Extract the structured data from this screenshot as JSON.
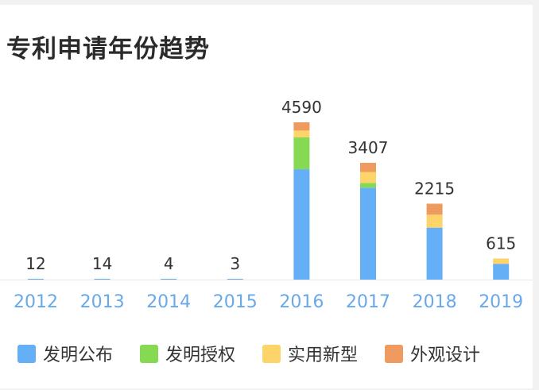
{
  "title": "专利申请年份趋势",
  "colors": {
    "发明公布": "#64aff5",
    "发明授权": "#86d953",
    "实用新型": "#fdd46a",
    "外观设计": "#ef9a5e",
    "axis_label": "#6aa8e8",
    "total_label": "#333333",
    "baseline": "#e8e8e8"
  },
  "legend": [
    {
      "name": "发明公布",
      "icon": "square-swatch"
    },
    {
      "name": "发明授权",
      "icon": "square-swatch"
    },
    {
      "name": "实用新型",
      "icon": "square-swatch"
    },
    {
      "name": "外观设计",
      "icon": "square-swatch"
    }
  ],
  "chart_data": {
    "type": "bar",
    "stacked": true,
    "categories": [
      "2012",
      "2013",
      "2014",
      "2015",
      "2016",
      "2017",
      "2018",
      "2019"
    ],
    "totals": [
      "12",
      "14",
      "4",
      "3",
      "4590",
      "3407",
      "2215",
      "615"
    ],
    "series": [
      {
        "name": "发明公布",
        "values": [
          12,
          14,
          4,
          3,
          3220,
          2680,
          1515,
          460
        ]
      },
      {
        "name": "发明授权",
        "values": [
          0,
          0,
          0,
          0,
          930,
          140,
          0,
          0
        ]
      },
      {
        "name": "实用新型",
        "values": [
          0,
          0,
          0,
          0,
          200,
          320,
          380,
          155
        ]
      },
      {
        "name": "外观设计",
        "values": [
          0,
          0,
          0,
          0,
          240,
          267,
          320,
          0
        ]
      }
    ],
    "ylim": [
      0,
      4590
    ],
    "grid": false,
    "legend_position": "bottom"
  }
}
